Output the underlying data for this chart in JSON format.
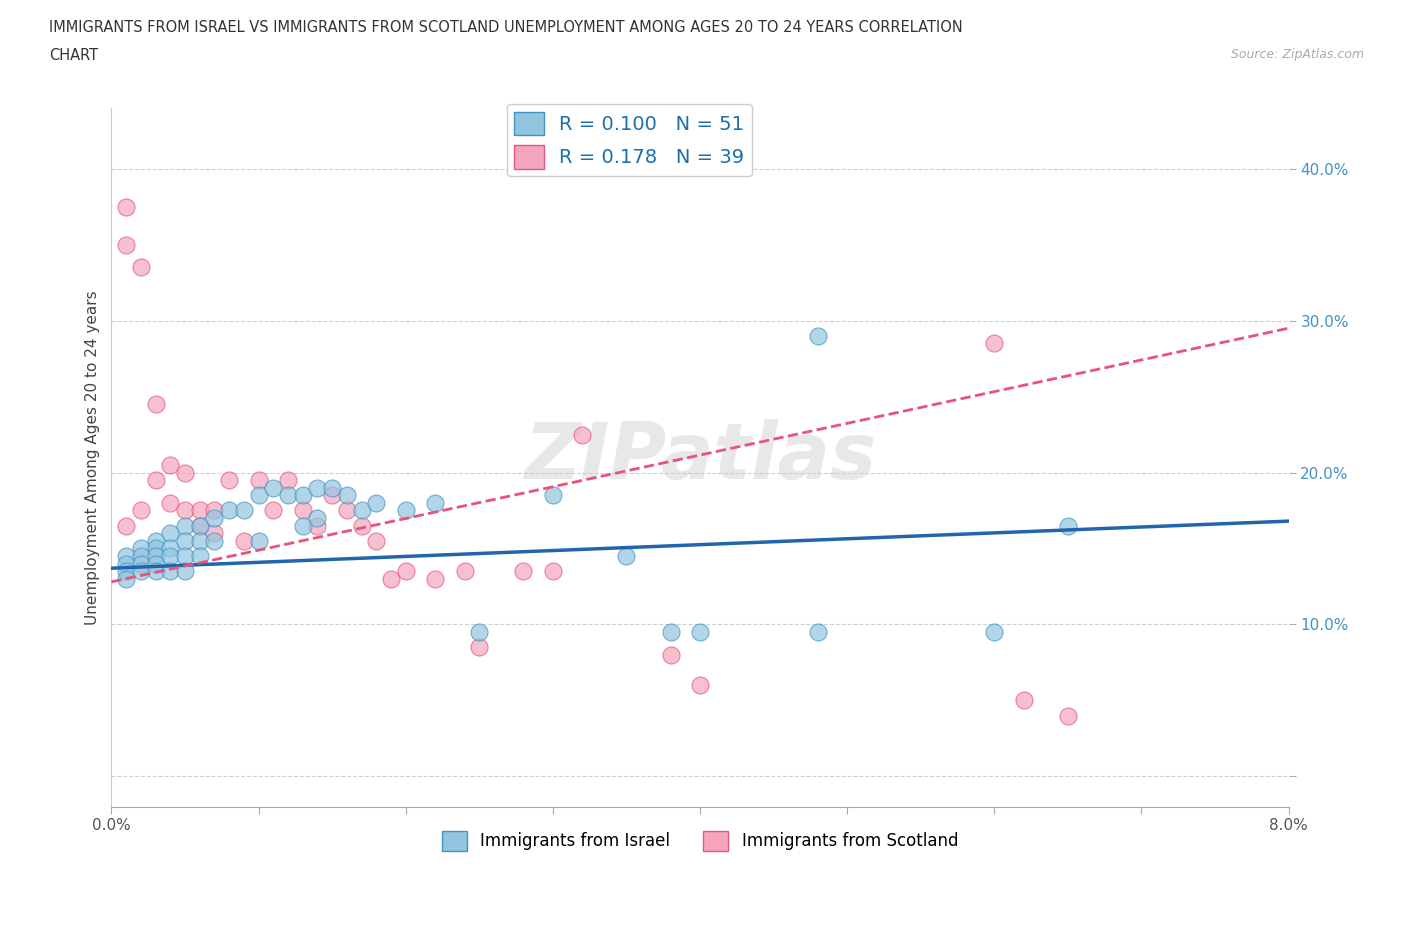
{
  "title_line1": "IMMIGRANTS FROM ISRAEL VS IMMIGRANTS FROM SCOTLAND UNEMPLOYMENT AMONG AGES 20 TO 24 YEARS CORRELATION",
  "title_line2": "CHART",
  "source_text": "Source: ZipAtlas.com",
  "ylabel": "Unemployment Among Ages 20 to 24 years",
  "legend_israel": "Immigrants from Israel",
  "legend_scotland": "Immigrants from Scotland",
  "R_israel": 0.1,
  "N_israel": 51,
  "R_scotland": 0.178,
  "N_scotland": 39,
  "color_israel": "#92c5de",
  "color_scotland": "#f4a6be",
  "color_trendline_israel": "#2166ac",
  "color_trendline_scotland": "#e8537a",
  "xlim": [
    0.0,
    0.08
  ],
  "ylim": [
    -0.02,
    0.44
  ],
  "xticks": [
    0.0,
    0.01,
    0.02,
    0.03,
    0.04,
    0.05,
    0.06,
    0.07,
    0.08
  ],
  "xtick_labels": [
    "0.0%",
    "",
    "",
    "",
    "",
    "",
    "",
    "",
    "8.0%"
  ],
  "yticks": [
    0.0,
    0.1,
    0.2,
    0.3,
    0.4
  ],
  "ytick_labels": [
    "",
    "10.0%",
    "20.0%",
    "30.0%",
    "40.0%"
  ],
  "watermark": "ZIPatlas",
  "trendline_israel_y0": 0.137,
  "trendline_israel_y1": 0.168,
  "trendline_scotland_y0": 0.128,
  "trendline_scotland_y1": 0.295,
  "israel_x": [
    0.001,
    0.001,
    0.001,
    0.001,
    0.002,
    0.002,
    0.002,
    0.002,
    0.003,
    0.003,
    0.003,
    0.003,
    0.003,
    0.004,
    0.004,
    0.004,
    0.004,
    0.005,
    0.005,
    0.005,
    0.005,
    0.006,
    0.006,
    0.006,
    0.007,
    0.007,
    0.008,
    0.009,
    0.01,
    0.01,
    0.011,
    0.012,
    0.013,
    0.013,
    0.014,
    0.014,
    0.015,
    0.016,
    0.017,
    0.018,
    0.02,
    0.022,
    0.025,
    0.03,
    0.035,
    0.038,
    0.04,
    0.048,
    0.06,
    0.065,
    0.048
  ],
  "israel_y": [
    0.145,
    0.14,
    0.135,
    0.13,
    0.15,
    0.145,
    0.14,
    0.135,
    0.155,
    0.15,
    0.145,
    0.14,
    0.135,
    0.16,
    0.15,
    0.145,
    0.135,
    0.165,
    0.155,
    0.145,
    0.135,
    0.165,
    0.155,
    0.145,
    0.17,
    0.155,
    0.175,
    0.175,
    0.185,
    0.155,
    0.19,
    0.185,
    0.185,
    0.165,
    0.19,
    0.17,
    0.19,
    0.185,
    0.175,
    0.18,
    0.175,
    0.18,
    0.095,
    0.185,
    0.145,
    0.095,
    0.095,
    0.095,
    0.095,
    0.165,
    0.29
  ],
  "scotland_x": [
    0.001,
    0.001,
    0.001,
    0.002,
    0.002,
    0.003,
    0.003,
    0.004,
    0.004,
    0.005,
    0.005,
    0.006,
    0.006,
    0.007,
    0.007,
    0.008,
    0.009,
    0.01,
    0.011,
    0.012,
    0.013,
    0.014,
    0.015,
    0.016,
    0.017,
    0.018,
    0.019,
    0.02,
    0.022,
    0.024,
    0.025,
    0.028,
    0.03,
    0.032,
    0.038,
    0.04,
    0.06,
    0.062,
    0.065
  ],
  "scotland_y": [
    0.375,
    0.35,
    0.165,
    0.335,
    0.175,
    0.245,
    0.195,
    0.205,
    0.18,
    0.2,
    0.175,
    0.175,
    0.165,
    0.175,
    0.16,
    0.195,
    0.155,
    0.195,
    0.175,
    0.195,
    0.175,
    0.165,
    0.185,
    0.175,
    0.165,
    0.155,
    0.13,
    0.135,
    0.13,
    0.135,
    0.085,
    0.135,
    0.135,
    0.225,
    0.08,
    0.06,
    0.285,
    0.05,
    0.04
  ]
}
